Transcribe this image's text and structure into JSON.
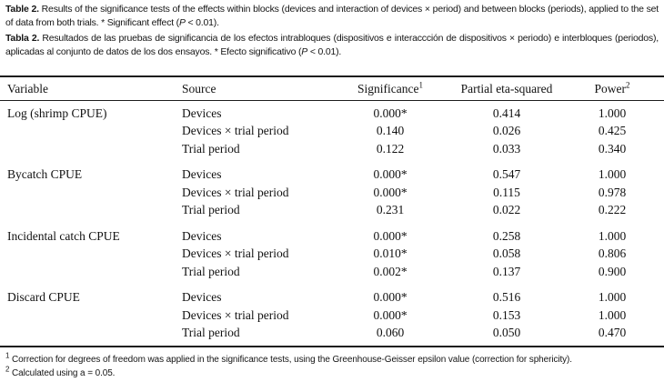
{
  "caption_en": {
    "bold": "Table 2.",
    "body_1": " Results of the significance tests of the effects within blocks (devices and interaction of devices × period) and between blocks (periods), applied to the set of data from both trials. * Significant effect (",
    "italic": "P",
    "body_2": " < 0.01)."
  },
  "caption_es": {
    "bold": "Tabla 2.",
    "body_1": " Resultados de las pruebas de significancia de los efectos intrabloques (dispositivos e interaccción de dispositivos × periodo) e interbloques (periodos), aplicadas al conjunto de datos de los dos ensayos. * Efecto significativo (",
    "italic": "P",
    "body_2": " < 0.01)."
  },
  "table": {
    "headers": {
      "variable": "Variable",
      "source": "Source",
      "significance": "Significance",
      "significance_sup": "1",
      "partial_eta": "Partial eta-squared",
      "power": "Power",
      "power_sup": "2"
    },
    "groups": [
      {
        "variable": "Log (shrimp CPUE)",
        "rows": [
          {
            "source": "Devices",
            "significance": "0.000*",
            "partial_eta": "0.414",
            "power": "1.000"
          },
          {
            "source": "Devices × trial period",
            "significance": "0.140",
            "partial_eta": "0.026",
            "power": "0.425"
          },
          {
            "source": "Trial period",
            "significance": "0.122",
            "partial_eta": "0.033",
            "power": "0.340"
          }
        ]
      },
      {
        "variable": "Bycatch CPUE",
        "rows": [
          {
            "source": "Devices",
            "significance": "0.000*",
            "partial_eta": "0.547",
            "power": "1.000"
          },
          {
            "source": "Devices × trial period",
            "significance": "0.000*",
            "partial_eta": "0.115",
            "power": "0.978"
          },
          {
            "source": "Trial period",
            "significance": "0.231",
            "partial_eta": "0.022",
            "power": "0.222"
          }
        ]
      },
      {
        "variable": "Incidental catch CPUE",
        "rows": [
          {
            "source": "Devices",
            "significance": "0.000*",
            "partial_eta": "0.258",
            "power": "1.000"
          },
          {
            "source": "Devices × trial period",
            "significance": "0.010*",
            "partial_eta": "0.058",
            "power": "0.806"
          },
          {
            "source": "Trial period",
            "significance": "0.002*",
            "partial_eta": "0.137",
            "power": "0.900"
          }
        ]
      },
      {
        "variable": "Discard CPUE",
        "rows": [
          {
            "source": "Devices",
            "significance": "0.000*",
            "partial_eta": "0.516",
            "power": "1.000"
          },
          {
            "source": "Devices × trial period",
            "significance": "0.000*",
            "partial_eta": "0.153",
            "power": "1.000"
          },
          {
            "source": "Trial period",
            "significance": "0.060",
            "partial_eta": "0.050",
            "power": "0.470"
          }
        ]
      }
    ]
  },
  "footnotes": [
    {
      "sup": "1",
      "text": " Correction for degrees of freedom was applied in the significance tests, using the Greenhouse-Geisser epsilon value (correction for sphericity)."
    },
    {
      "sup": "2",
      "text": " Calculated using a = 0.05."
    }
  ],
  "chart_data": {
    "type": "table",
    "title": "Table 2. Significance tests of effects within blocks and between blocks",
    "columns": [
      "Variable",
      "Source",
      "Significance",
      "Partial eta-squared",
      "Power"
    ],
    "rows": [
      [
        "Log (shrimp CPUE)",
        "Devices",
        "0.000*",
        0.414,
        1.0
      ],
      [
        "Log (shrimp CPUE)",
        "Devices × trial period",
        "0.140",
        0.026,
        0.425
      ],
      [
        "Log (shrimp CPUE)",
        "Trial period",
        "0.122",
        0.033,
        0.34
      ],
      [
        "Bycatch CPUE",
        "Devices",
        "0.000*",
        0.547,
        1.0
      ],
      [
        "Bycatch CPUE",
        "Devices × trial period",
        "0.000*",
        0.115,
        0.978
      ],
      [
        "Bycatch CPUE",
        "Trial period",
        "0.231",
        0.022,
        0.222
      ],
      [
        "Incidental catch CPUE",
        "Devices",
        "0.000*",
        0.258,
        1.0
      ],
      [
        "Incidental catch CPUE",
        "Devices × trial period",
        "0.010*",
        0.058,
        0.806
      ],
      [
        "Incidental catch CPUE",
        "Trial period",
        "0.002*",
        0.137,
        0.9
      ],
      [
        "Discard CPUE",
        "Devices",
        "0.000*",
        0.516,
        1.0
      ],
      [
        "Discard CPUE",
        "Devices × trial period",
        "0.000*",
        0.153,
        1.0
      ],
      [
        "Discard CPUE",
        "Trial period",
        "0.060",
        0.05,
        0.47
      ]
    ]
  }
}
